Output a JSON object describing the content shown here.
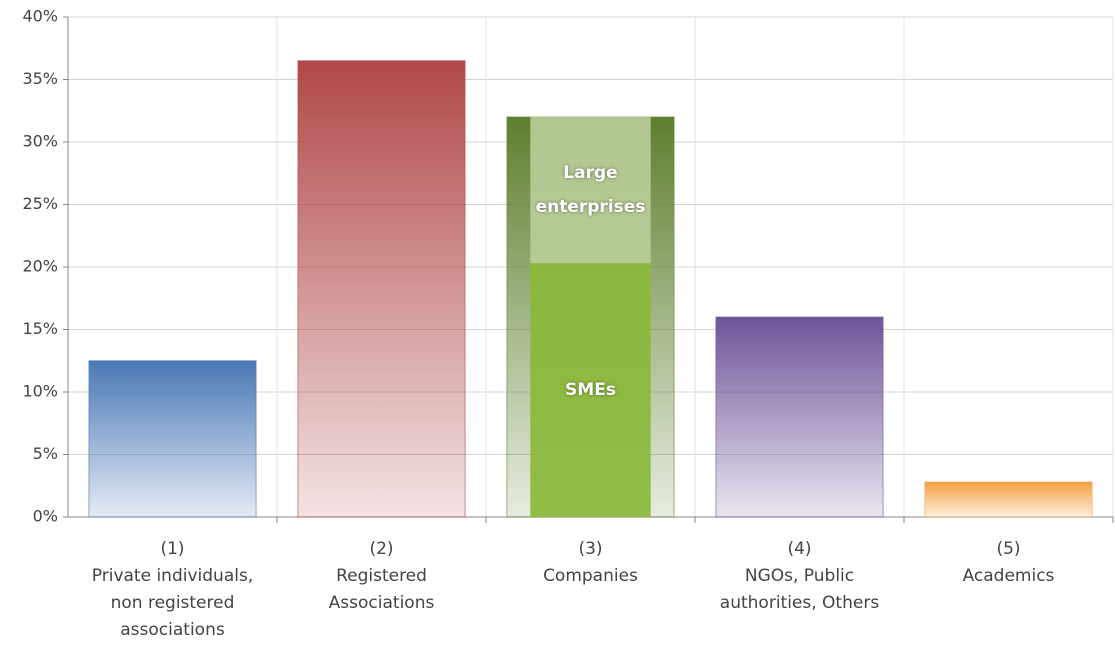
{
  "chart_data": {
    "type": "bar",
    "categories": [
      [
        "(1)",
        "Private individuals,",
        "non registered",
        "associations"
      ],
      [
        "(2)",
        "Registered",
        "Associations"
      ],
      [
        "(3)",
        "Companies"
      ],
      [
        "(4)",
        "NGOs, Public",
        "authorities, Others"
      ],
      [
        "(5)",
        "Academics"
      ]
    ],
    "values": [
      12.5,
      36.5,
      32,
      16,
      2.8
    ],
    "colors": [
      "#4a78b5",
      "#b04848",
      "#5e7f2e",
      "#6e5498",
      "#f2a040"
    ],
    "segments": {
      "category": 2,
      "series": [
        {
          "name": "SMEs",
          "color": "#8ab83a",
          "values": [
            20.3
          ]
        },
        {
          "name": "Large enterprises",
          "color": "#b8cc98",
          "values": [
            11.7
          ]
        }
      ]
    },
    "ylim": [
      0,
      40
    ],
    "yticks": [
      {
        "value": 0,
        "label": "0%"
      },
      {
        "value": 5,
        "label": "5%"
      },
      {
        "value": 10,
        "label": "10%"
      },
      {
        "value": 15,
        "label": "15%"
      },
      {
        "value": 20,
        "label": "20%"
      },
      {
        "value": 25,
        "label": "25%"
      },
      {
        "value": 30,
        "label": "30%"
      },
      {
        "value": 35,
        "label": "35%"
      },
      {
        "value": 40,
        "label": "40%"
      }
    ],
    "grid": true
  }
}
